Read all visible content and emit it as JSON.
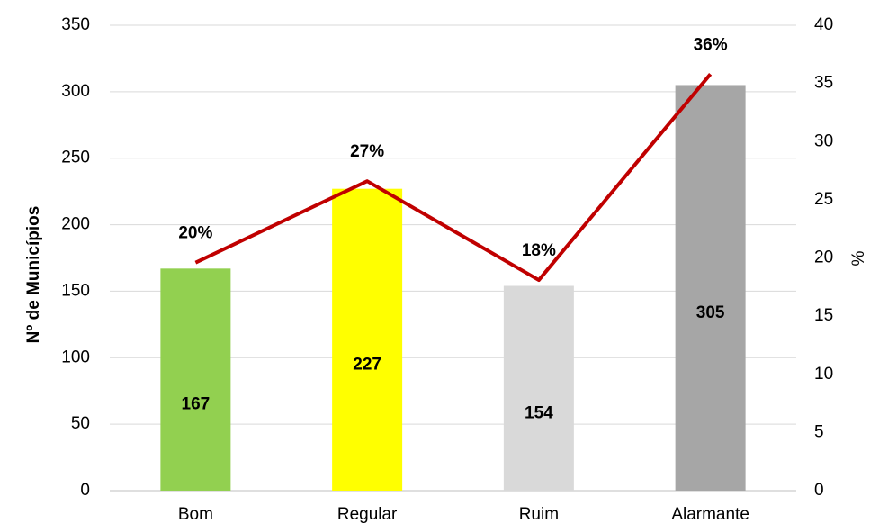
{
  "chart_data": {
    "type": "bar_line",
    "categories": [
      "Bom",
      "Regular",
      "Ruim",
      "Alarmante"
    ],
    "series": [
      {
        "type": "bar",
        "colors": [
          "#92d050",
          "#ffff00",
          "#d9d9d9",
          "#a6a6a6"
        ],
        "values": [
          167,
          227,
          154,
          305
        ]
      },
      {
        "type": "line",
        "axis": "y2",
        "color": "#c00000",
        "values": [
          19.6,
          26.6,
          18.1,
          35.8
        ],
        "value_labels": [
          "20%",
          "27%",
          "18%",
          "36%"
        ]
      }
    ],
    "ylabel": "Nº de Municípios",
    "y2label": "%",
    "ylim": [
      0,
      350
    ],
    "yticks": [
      0,
      50,
      100,
      150,
      200,
      250,
      300,
      350
    ],
    "y2lim": [
      0,
      40
    ],
    "y2ticks": [
      0,
      5,
      10,
      15,
      20,
      25,
      30,
      35,
      40
    ],
    "grid": true
  }
}
